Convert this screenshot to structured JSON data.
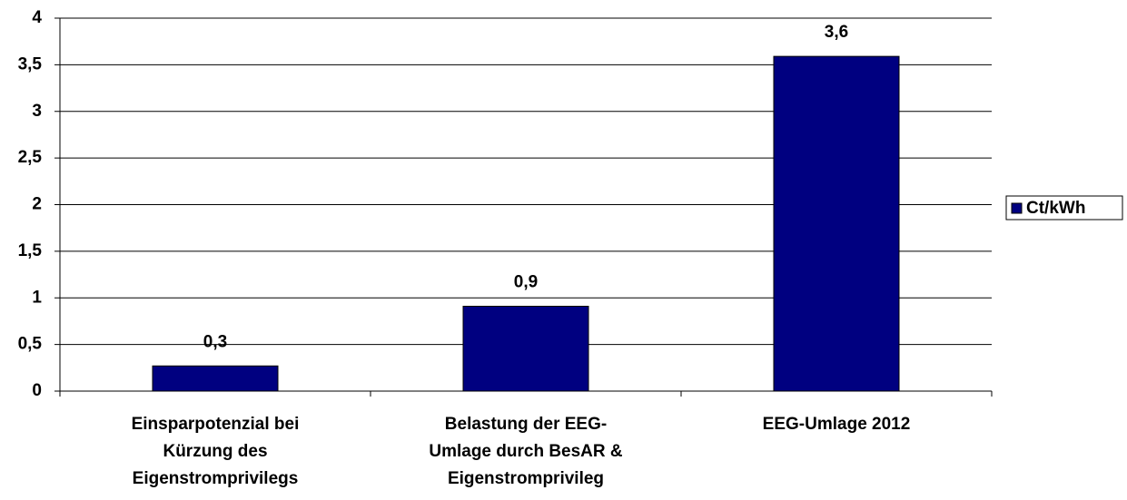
{
  "chart_data": {
    "type": "bar",
    "categories": [
      [
        "Einsparpotenzial bei",
        "Kürzung des",
        "Eigenstromprivilegs"
      ],
      [
        "Belastung der EEG-",
        "Umlage durch BesAR &",
        "Eigenstromprivileg"
      ],
      [
        "EEG-Umlage 2012"
      ]
    ],
    "series": [
      {
        "name": "Ct/kWh",
        "color": "#000080",
        "values": [
          0.27,
          0.91,
          3.59
        ],
        "value_labels": [
          "0,3",
          "0,9",
          "3,6"
        ]
      }
    ],
    "ylim": [
      0,
      4
    ],
    "yticks": [
      0,
      {
        "value": 0.5,
        "label": "0,5"
      },
      1,
      {
        "value": 1.5,
        "label": "1,5"
      },
      2,
      {
        "value": 2.5,
        "label": "2,5"
      },
      3,
      {
        "value": 3.5,
        "label": "3,5"
      },
      4
    ],
    "grid": true,
    "legend": "right"
  }
}
